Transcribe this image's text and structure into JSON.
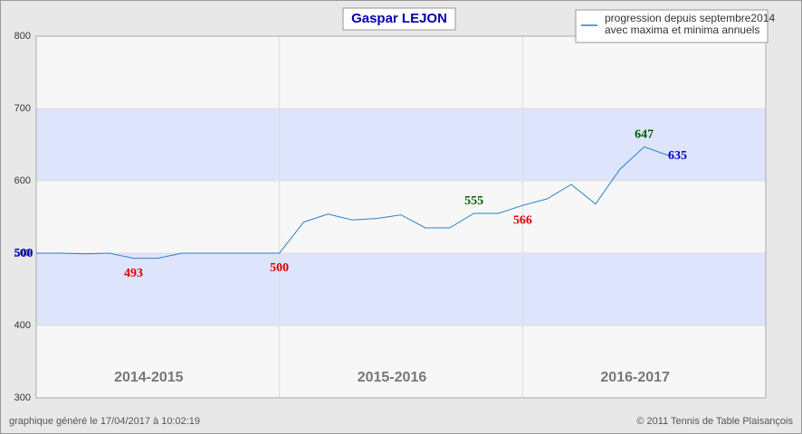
{
  "chart_data": {
    "type": "line",
    "title": "Gaspar LEJON",
    "legend": [
      "progression depuis septembre2014",
      "avec maxima et minima annuels"
    ],
    "footer_left": "graphique généré le 17/04/2017 à 10:02:19",
    "footer_right": "© 2011 Tennis de Table Plaisançois",
    "seasons": [
      "2014-2015",
      "2015-2016",
      "2016-2017"
    ],
    "dividers": [
      10,
      20
    ],
    "bands": [
      [
        400,
        500
      ],
      [
        600,
        700
      ]
    ],
    "xlim": [
      0,
      30
    ],
    "ylim": [
      300,
      800
    ],
    "yticks": [
      300,
      400,
      500,
      600,
      700,
      800
    ],
    "series": [
      {
        "color": "#2a7fc8",
        "values": [
          500,
          500,
          499,
          500,
          493,
          493,
          500,
          500,
          500,
          500,
          500,
          543,
          554,
          546,
          548,
          553,
          535,
          535,
          555,
          555,
          566,
          575,
          595,
          568,
          616,
          647,
          635
        ]
      }
    ],
    "point_labels": [
      {
        "point": 0,
        "color": "#0000c0"
      },
      {
        "point": 4,
        "color": "#e00000"
      },
      {
        "point": 10,
        "color": "#e00000"
      },
      {
        "point": 18,
        "color": "#006000"
      },
      {
        "point": 20,
        "color": "#e00000"
      },
      {
        "point": 25,
        "color": "#006000"
      },
      {
        "point": 26,
        "color": "#0000c0"
      }
    ]
  }
}
